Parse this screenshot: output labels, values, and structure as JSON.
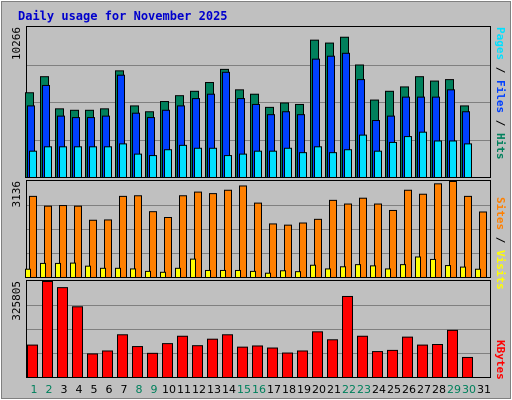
{
  "title": "Daily usage for November 2025",
  "colors": {
    "title": "#0000cc",
    "hits": "#00805c",
    "files": "#0040ff",
    "pages": "#00e0ff",
    "visits": "#ff8000",
    "sites": "#ffff00",
    "kbytes": "#ff0000",
    "weekend_day": "#00805c",
    "weekday": "#000000"
  },
  "legend": {
    "top_panel": [
      {
        "text": "Pages",
        "color_key": "pages"
      },
      {
        "text": " / ",
        "color_key": "weekday"
      },
      {
        "text": "Files",
        "color_key": "files"
      },
      {
        "text": " / ",
        "color_key": "weekday"
      },
      {
        "text": "Hits",
        "color_key": "hits"
      }
    ],
    "mid_panel": [
      {
        "text": "Sites",
        "color_key": "visits"
      },
      {
        "text": " / ",
        "color_key": "weekday"
      },
      {
        "text": "Visits",
        "color_key": "sites"
      }
    ],
    "bottom_panel": [
      {
        "text": "KBytes",
        "color_key": "kbytes"
      }
    ]
  },
  "chart_data": [
    {
      "type": "bar",
      "panel": "hits-files-pages",
      "y_max_label": "10266",
      "ylim": [
        0,
        10266
      ],
      "categories": [
        "1",
        "2",
        "3",
        "4",
        "5",
        "6",
        "7",
        "8",
        "9",
        "10",
        "11",
        "12",
        "13",
        "14",
        "15",
        "16",
        "17",
        "18",
        "19",
        "20",
        "21",
        "22",
        "23",
        "24",
        "25",
        "26",
        "27",
        "28",
        "29",
        "30",
        "31"
      ],
      "weekend_days": [
        "1",
        "2",
        "8",
        "9",
        "15",
        "16",
        "22",
        "23",
        "29",
        "30"
      ],
      "series": [
        {
          "name": "Hits",
          "values": [
            5800,
            6900,
            4700,
            4600,
            4600,
            4700,
            7300,
            4900,
            4500,
            5200,
            5600,
            5900,
            6500,
            7400,
            6000,
            5700,
            4800,
            5100,
            5000,
            9400,
            9200,
            9600,
            7700,
            5300,
            5900,
            6200,
            6900,
            6600,
            6700,
            4900,
            0
          ]
        },
        {
          "name": "Files",
          "values": [
            4900,
            6300,
            4200,
            4100,
            4100,
            4200,
            7000,
            4400,
            4100,
            4600,
            4900,
            5400,
            5700,
            7200,
            5400,
            5000,
            4300,
            4500,
            4300,
            8100,
            8300,
            8500,
            6700,
            3900,
            4200,
            5500,
            5500,
            5500,
            6000,
            4500,
            0
          ]
        },
        {
          "name": "Pages",
          "values": [
            1800,
            2100,
            2100,
            2100,
            2100,
            2100,
            2300,
            1600,
            1500,
            1900,
            2200,
            2000,
            2000,
            1500,
            1600,
            1800,
            1800,
            2000,
            1700,
            2100,
            1700,
            1900,
            2900,
            1800,
            2400,
            2800,
            3100,
            2500,
            2500,
            2300,
            0
          ]
        }
      ]
    },
    {
      "type": "bar",
      "panel": "visits-sites",
      "y_max_label": "3136",
      "ylim": [
        0,
        3136
      ],
      "categories": [
        "1",
        "2",
        "3",
        "4",
        "5",
        "6",
        "7",
        "8",
        "9",
        "10",
        "11",
        "12",
        "13",
        "14",
        "15",
        "16",
        "17",
        "18",
        "19",
        "20",
        "21",
        "22",
        "23",
        "24",
        "25",
        "26",
        "27",
        "28",
        "29",
        "30",
        "31"
      ],
      "series": [
        {
          "name": "Visits",
          "values": [
            2650,
            2330,
            2350,
            2330,
            1870,
            1880,
            2650,
            2670,
            2150,
            1960,
            2670,
            2790,
            2740,
            2850,
            2990,
            2430,
            1750,
            1710,
            1780,
            1900,
            2520,
            2400,
            2590,
            2400,
            2190,
            2850,
            2720,
            3060,
            3140,
            2650,
            2140
          ]
        },
        {
          "name": "Sites",
          "values": [
            270,
            460,
            460,
            470,
            370,
            300,
            300,
            280,
            200,
            170,
            300,
            600,
            230,
            230,
            230,
            200,
            140,
            220,
            190,
            400,
            280,
            350,
            420,
            380,
            280,
            420,
            670,
            590,
            390,
            340,
            270
          ]
        }
      ]
    },
    {
      "type": "bar",
      "panel": "kbytes",
      "y_max_label": "325805",
      "ylim": [
        0,
        325805
      ],
      "categories": [
        "1",
        "2",
        "3",
        "4",
        "5",
        "6",
        "7",
        "8",
        "9",
        "10",
        "11",
        "12",
        "13",
        "14",
        "15",
        "16",
        "17",
        "18",
        "19",
        "20",
        "21",
        "22",
        "23",
        "24",
        "25",
        "26",
        "27",
        "28",
        "29",
        "30",
        "31"
      ],
      "series": [
        {
          "name": "KBytes",
          "values": [
            110000,
            330000,
            305000,
            240000,
            80000,
            90000,
            145000,
            105000,
            82000,
            115000,
            140000,
            108000,
            130000,
            145000,
            103000,
            107000,
            100000,
            83000,
            90000,
            155000,
            128000,
            275000,
            140000,
            88000,
            92000,
            137000,
            110000,
            112000,
            160000,
            68000,
            0
          ]
        }
      ]
    }
  ]
}
